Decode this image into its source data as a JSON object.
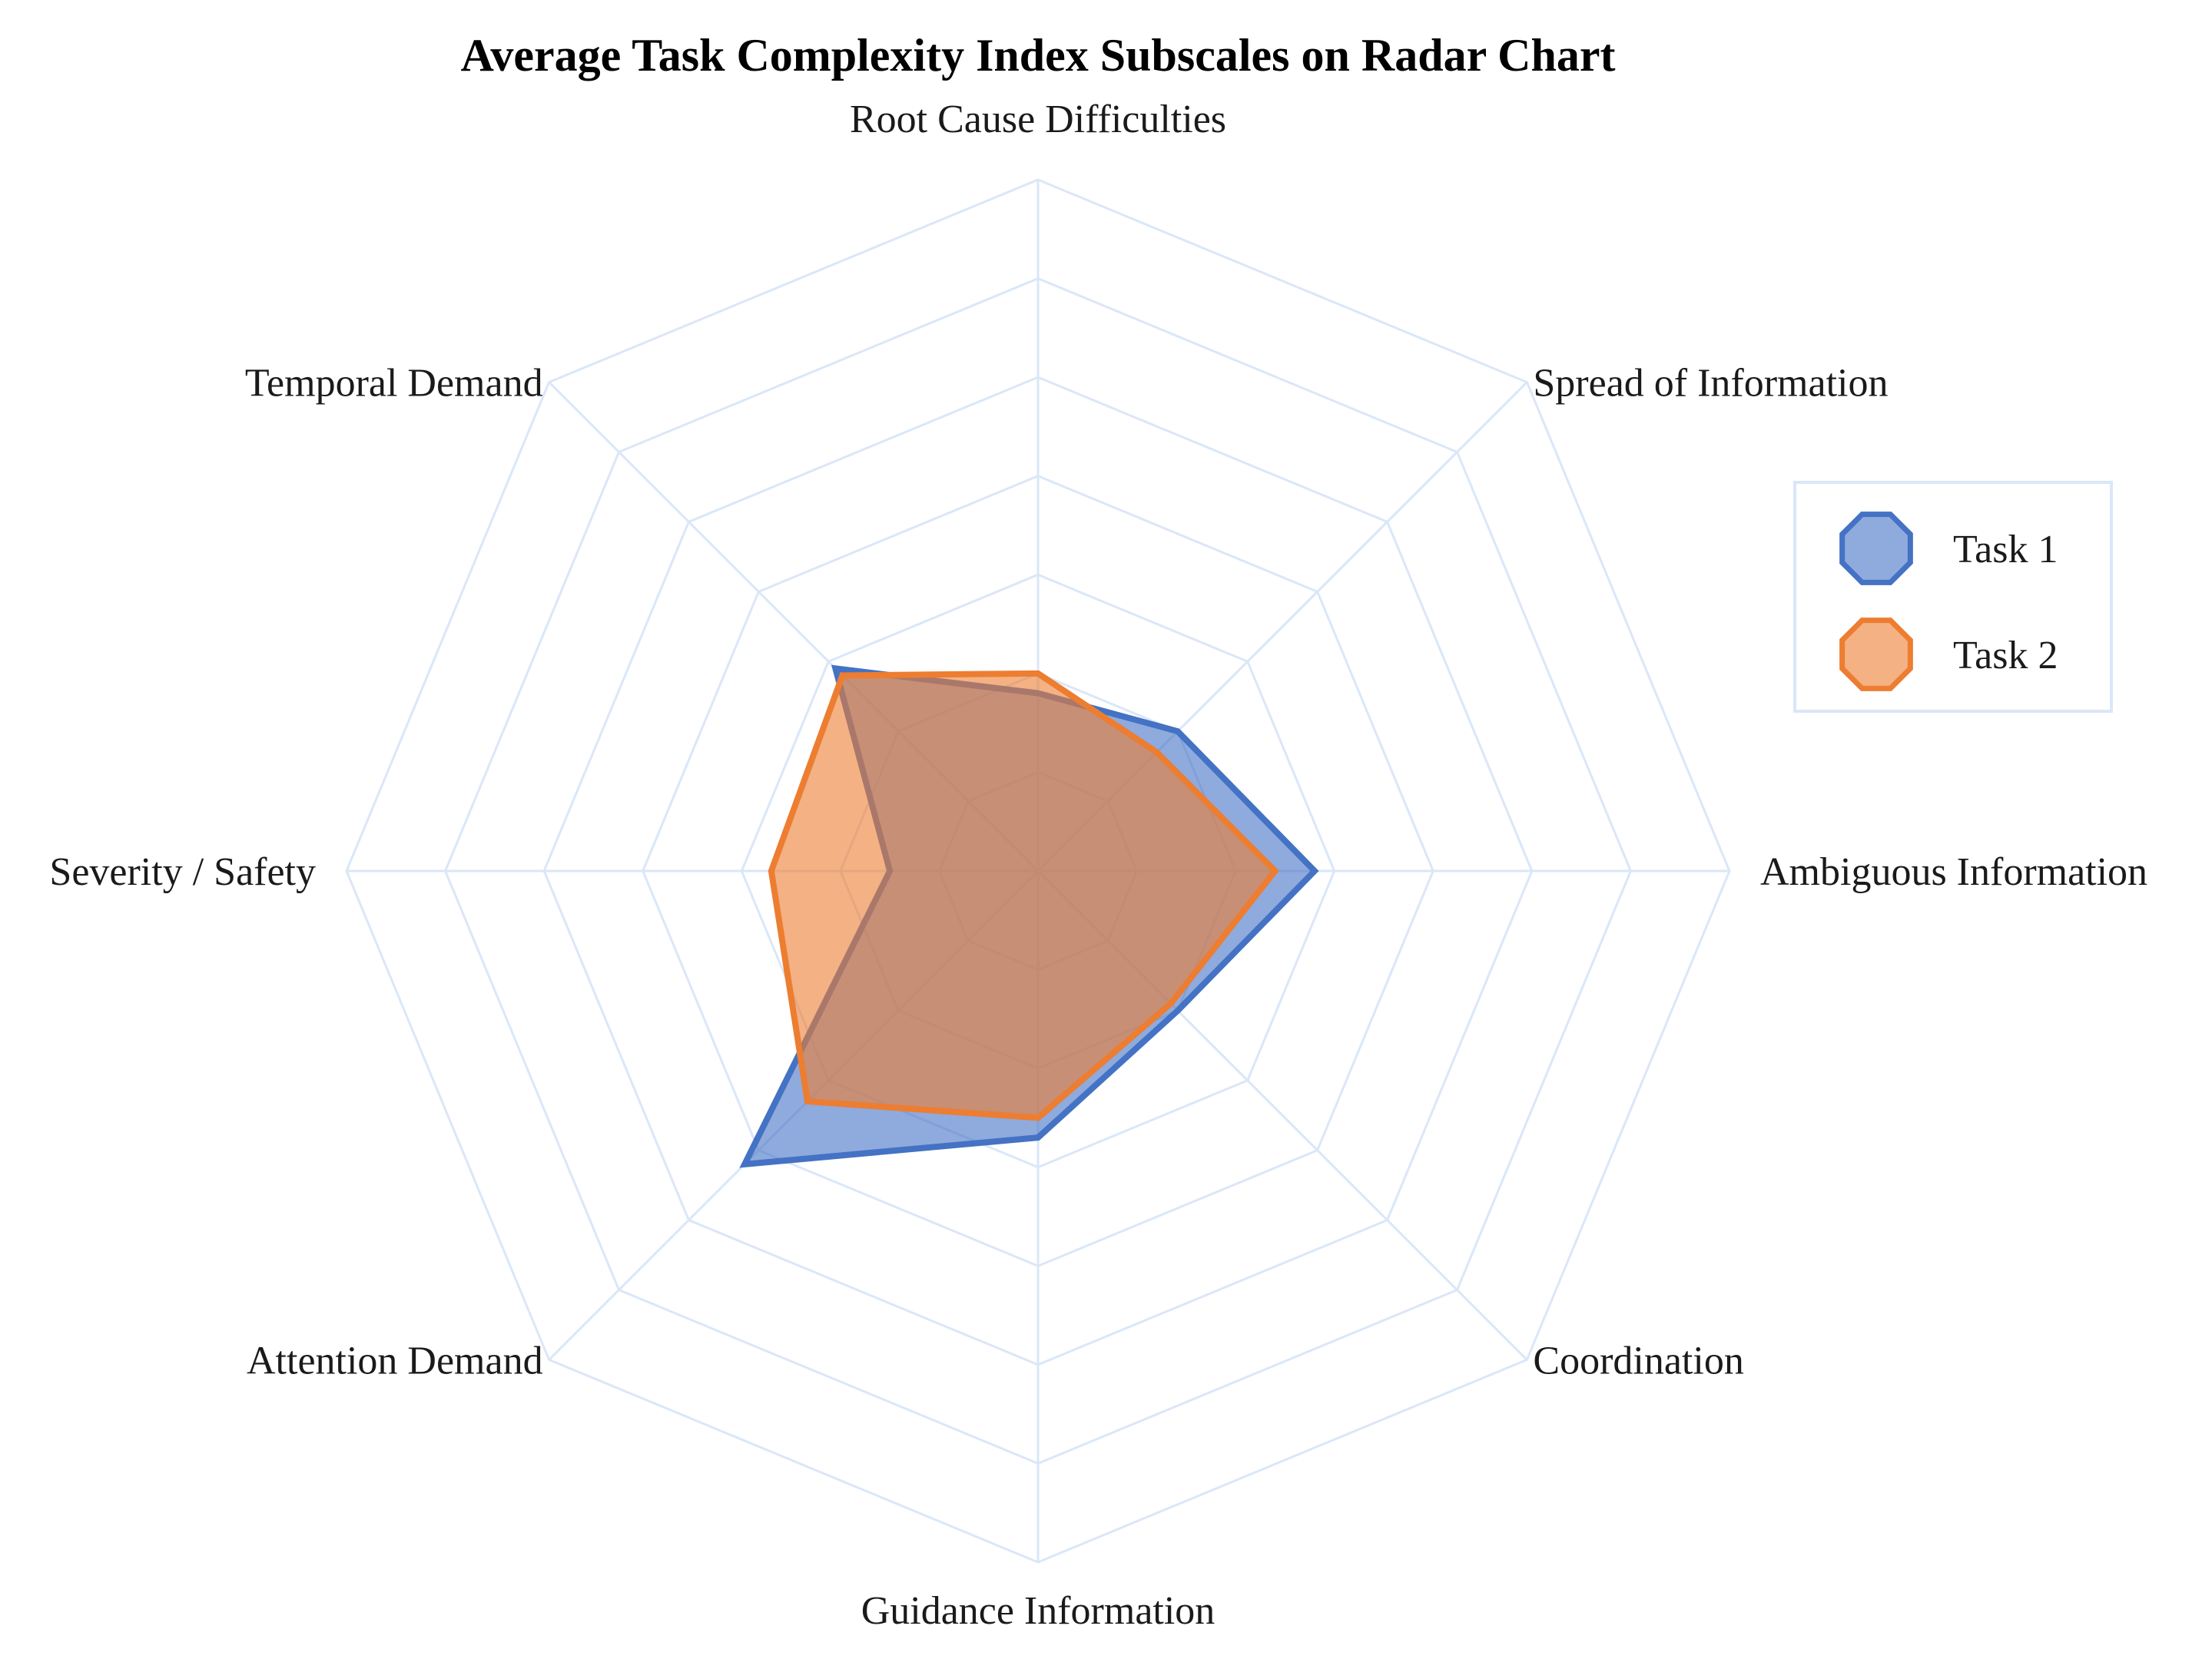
{
  "chart_data": {
    "type": "radar",
    "title": "Average Task Complexity Index Subscales on Radar Chart",
    "categories": [
      "Root Cause Difficulties",
      "Spread of Information",
      "Ambiguous Information",
      "Coordination",
      "Guidance Information",
      "Attention Demand",
      "Severity / Safety",
      "Temporal Demand"
    ],
    "rmax": 7,
    "rings": 7,
    "grid": true,
    "legend_position": "right",
    "series": [
      {
        "name": "Task 1",
        "values": [
          1.8,
          2.0,
          2.8,
          2.0,
          2.7,
          4.2,
          1.5,
          2.9
        ],
        "color": "#4472C4",
        "fill": "rgba(68,114,196,0.6)"
      },
      {
        "name": "Task 2",
        "values": [
          2.0,
          1.7,
          2.4,
          1.9,
          2.5,
          3.3,
          2.7,
          2.8
        ],
        "color": "#ED7D31",
        "fill": "rgba(237,125,49,0.6)"
      }
    ],
    "grid_color": "#DAE7F8"
  }
}
